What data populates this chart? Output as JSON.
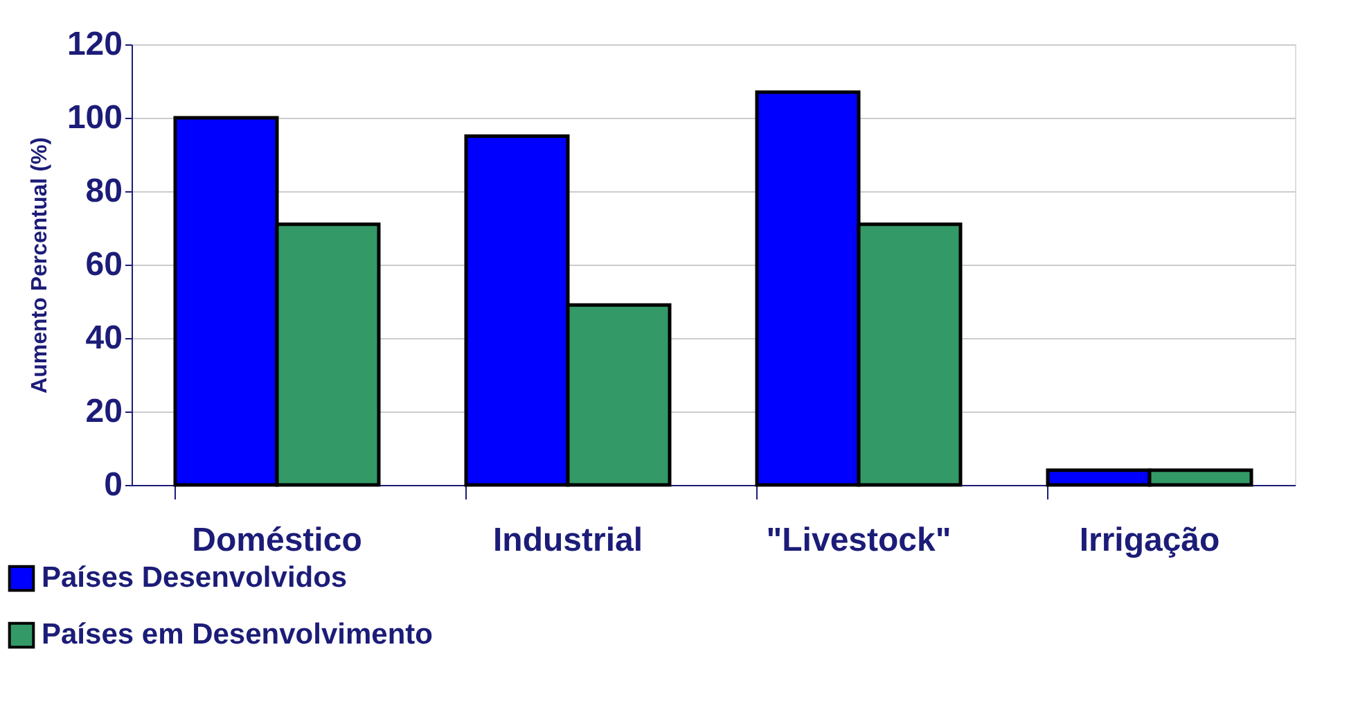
{
  "chart_data": {
    "type": "bar",
    "ylabel": "Aumento Percentual (%)",
    "categories": [
      "Doméstico",
      "Industrial",
      "\"Livestock\"",
      "Irrigação"
    ],
    "series": [
      {
        "name": "Países Desenvolvidos",
        "color": "#0000ff",
        "values": [
          100,
          95,
          107,
          4
        ]
      },
      {
        "name": "Países em Desenvolvimento",
        "color": "#339966",
        "values": [
          71,
          49,
          71,
          4
        ]
      }
    ],
    "ylim": [
      0,
      120
    ],
    "yticks": [
      0,
      20,
      40,
      60,
      80,
      100,
      120
    ],
    "grid": "y",
    "legend": "bottom left"
  }
}
